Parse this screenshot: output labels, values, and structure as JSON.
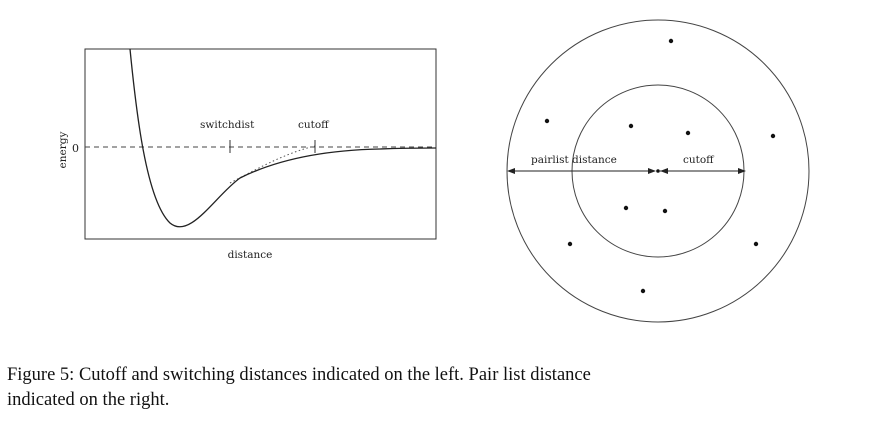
{
  "left_plot": {
    "ylabel": "energy",
    "xlabel": "distance",
    "zero_tick": "0",
    "switchdist_label": "switchdist",
    "cutoff_label": "cutoff"
  },
  "right_diagram": {
    "pairlist_label": "pairlist distance",
    "cutoff_label": "cutoff",
    "points_count": 11
  },
  "caption": {
    "line1": "Figure 5: Cutoff and switching distances indicated on the left. Pair list distance",
    "line2": "indicated on the right."
  }
}
